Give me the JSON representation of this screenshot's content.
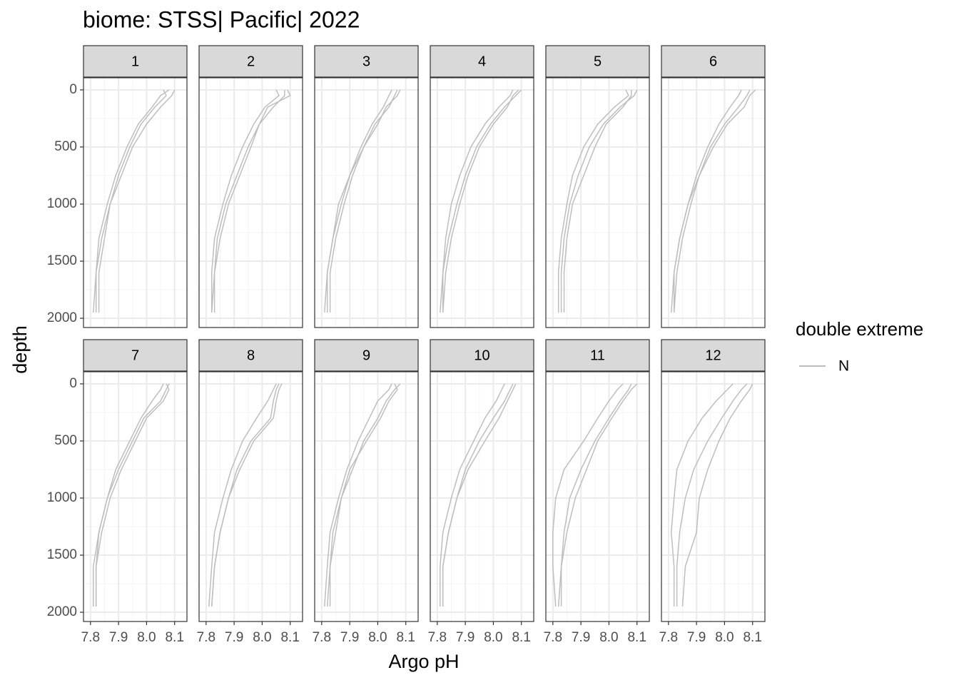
{
  "chart_data": {
    "type": "line",
    "title": "biome: STSS| Pacific| 2022",
    "x_label": "Argo pH",
    "y_label": "depth",
    "legend_title": "double extreme",
    "series_name": "N",
    "color": "#bebebe",
    "xlim": [
      7.775,
      8.144
    ],
    "ylim": [
      -106,
      2081
    ],
    "y_reversed": true,
    "xticks": [
      7.8,
      7.9,
      {
        "value": 8,
        "label": "8.0"
      },
      8.1
    ],
    "yticks": [
      0,
      500,
      1000,
      1500,
      2000
    ],
    "x_minor_grid": [
      7.85,
      7.95,
      8.05
    ],
    "y_minor_grid": [
      250,
      750,
      1250,
      1750
    ],
    "grid": true,
    "depth": [
      0,
      50,
      150,
      300,
      500,
      750,
      1000,
      1300,
      1600,
      1950
    ],
    "panels": [
      {
        "label": "1",
        "profiles": [
          [
            8.1,
            8.09,
            8.05,
            8.0,
            7.95,
            7.91,
            7.87,
            7.84,
            7.82,
            7.82
          ],
          [
            8.06,
            8.07,
            8.03,
            7.98,
            7.94,
            7.9,
            7.87,
            7.85,
            7.83,
            7.83
          ],
          [
            8.08,
            8.05,
            8.02,
            7.97,
            7.93,
            7.89,
            7.86,
            7.83,
            7.82,
            7.81
          ]
        ]
      },
      {
        "label": "2",
        "profiles": [
          [
            8.09,
            8.1,
            8.02,
            7.99,
            7.95,
            7.91,
            7.87,
            7.84,
            7.83,
            7.82
          ],
          [
            8.05,
            8.06,
            8.01,
            7.97,
            7.93,
            7.89,
            7.86,
            7.83,
            7.82,
            7.82
          ],
          [
            8.08,
            8.08,
            8.04,
            7.99,
            7.96,
            7.92,
            7.88,
            7.85,
            7.83,
            7.83
          ]
        ]
      },
      {
        "label": "3",
        "profiles": [
          [
            8.08,
            8.07,
            8.03,
            8.0,
            7.95,
            7.91,
            7.88,
            7.85,
            7.83,
            7.83
          ],
          [
            8.05,
            8.04,
            8.02,
            7.98,
            7.94,
            7.9,
            7.87,
            7.84,
            7.82,
            7.82
          ],
          [
            8.07,
            8.06,
            8.04,
            7.99,
            7.95,
            7.9,
            7.86,
            7.84,
            7.82,
            7.81
          ]
        ]
      },
      {
        "label": "4",
        "profiles": [
          [
            8.1,
            8.08,
            8.04,
            7.99,
            7.94,
            7.9,
            7.87,
            7.84,
            7.82,
            7.82
          ],
          [
            8.07,
            8.06,
            8.02,
            7.97,
            7.92,
            7.88,
            7.85,
            7.83,
            7.82,
            7.81
          ],
          [
            8.09,
            8.07,
            8.05,
            8.0,
            7.95,
            7.91,
            7.88,
            7.85,
            7.83,
            7.82
          ]
        ]
      },
      {
        "label": "5",
        "profiles": [
          [
            8.1,
            8.09,
            8.04,
            7.98,
            7.93,
            7.89,
            7.86,
            7.84,
            7.83,
            7.83
          ],
          [
            8.06,
            8.07,
            8.02,
            7.96,
            7.91,
            7.87,
            7.85,
            7.83,
            7.82,
            7.82
          ],
          [
            8.08,
            8.08,
            8.05,
            7.99,
            7.95,
            7.91,
            7.87,
            7.85,
            7.84,
            7.84
          ]
        ]
      },
      {
        "label": "6",
        "profiles": [
          [
            8.09,
            8.08,
            8.05,
            8.0,
            7.95,
            7.91,
            7.88,
            7.85,
            7.83,
            7.82
          ],
          [
            8.06,
            8.05,
            8.02,
            7.98,
            7.94,
            7.9,
            7.87,
            7.84,
            7.82,
            7.82
          ],
          [
            8.11,
            8.09,
            8.07,
            8.01,
            7.96,
            7.91,
            7.87,
            7.84,
            7.82,
            7.81
          ]
        ]
      },
      {
        "label": "7",
        "profiles": [
          [
            8.08,
            8.07,
            8.05,
            7.99,
            7.95,
            7.9,
            7.86,
            7.83,
            7.82,
            7.82
          ],
          [
            8.06,
            8.05,
            8.02,
            7.98,
            7.94,
            7.89,
            7.86,
            7.83,
            7.81,
            7.81
          ],
          [
            8.07,
            8.08,
            8.06,
            8.0,
            7.96,
            7.91,
            7.87,
            7.84,
            7.82,
            7.82
          ]
        ]
      },
      {
        "label": "8",
        "profiles": [
          [
            8.06,
            8.05,
            8.04,
            8.03,
            7.96,
            7.91,
            7.88,
            7.85,
            7.83,
            7.82
          ],
          [
            8.05,
            8.04,
            8.02,
            7.98,
            7.93,
            7.89,
            7.86,
            7.83,
            7.82,
            7.81
          ],
          [
            8.07,
            8.06,
            8.05,
            8.04,
            7.97,
            7.92,
            7.88,
            7.85,
            7.83,
            7.82
          ]
        ]
      },
      {
        "label": "9",
        "profiles": [
          [
            8.08,
            8.06,
            8.03,
            8.0,
            7.95,
            7.91,
            7.87,
            7.84,
            7.83,
            7.82
          ],
          [
            8.05,
            8.04,
            8.0,
            7.97,
            7.93,
            7.89,
            7.86,
            7.83,
            7.82,
            7.81
          ],
          [
            8.06,
            8.07,
            8.04,
            8.01,
            7.96,
            7.9,
            7.87,
            7.85,
            7.83,
            7.83
          ]
        ]
      },
      {
        "label": "10",
        "profiles": [
          [
            8.07,
            8.06,
            8.04,
            8.0,
            7.95,
            7.9,
            7.87,
            7.84,
            7.82,
            7.82
          ],
          [
            8.04,
            8.03,
            8.01,
            7.97,
            7.93,
            7.88,
            7.85,
            7.82,
            7.81,
            7.81
          ],
          [
            8.08,
            8.07,
            8.05,
            8.02,
            7.97,
            7.91,
            7.87,
            7.84,
            7.82,
            7.82
          ]
        ]
      },
      {
        "label": "11",
        "profiles": [
          [
            8.08,
            8.07,
            8.04,
            8.0,
            7.95,
            7.9,
            7.86,
            7.84,
            7.83,
            7.83
          ],
          [
            8.05,
            8.03,
            8.0,
            7.96,
            7.91,
            7.84,
            7.81,
            7.8,
            7.8,
            7.81
          ],
          [
            8.1,
            8.08,
            8.05,
            8.01,
            7.96,
            7.92,
            7.88,
            7.85,
            7.83,
            7.82
          ]
        ]
      },
      {
        "label": "12",
        "profiles": [
          [
            8.08,
            8.06,
            8.03,
            7.99,
            7.94,
            7.89,
            7.86,
            7.84,
            7.83,
            7.83
          ],
          [
            8.03,
            8.01,
            7.97,
            7.92,
            7.87,
            7.83,
            7.82,
            7.81,
            7.82,
            7.82
          ],
          [
            8.1,
            8.09,
            8.06,
            8.02,
            7.98,
            7.94,
            7.91,
            7.9,
            7.86,
            7.85
          ]
        ]
      }
    ]
  }
}
